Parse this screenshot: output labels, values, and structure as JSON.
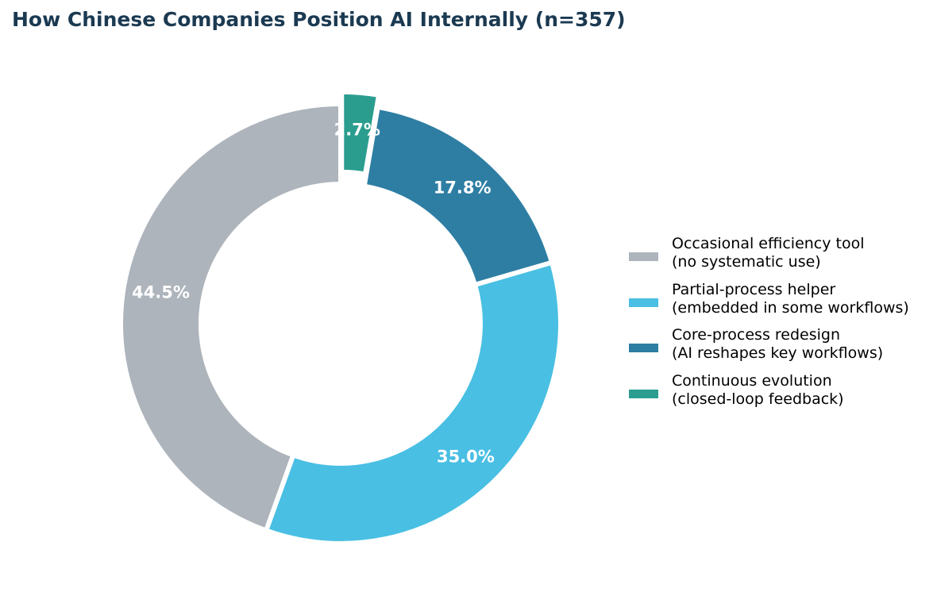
{
  "chart_data": {
    "type": "pie",
    "donut": true,
    "title": "How Chinese Companies Position AI Internally (n=357)",
    "slices": [
      {
        "label": "Occasional efficiency tool\n(no systematic use)",
        "value": 44.5,
        "label_text": "44.5%",
        "color": "#adb4bb"
      },
      {
        "label": "Partial-process helper\n(embedded in some workflows)",
        "value": 35.0,
        "label_text": "35.0%",
        "color": "#49bfe3"
      },
      {
        "label": "Core-process redesign\n(AI reshapes key workflows)",
        "value": 17.8,
        "label_text": "17.8%",
        "color": "#2e7ea3"
      },
      {
        "label": "Continuous evolution\n(closed-loop feedback)",
        "value": 2.7,
        "label_text": "2.7%",
        "color": "#2a9d8f"
      }
    ],
    "start_angle_deg": 90,
    "direction": "counterclockwise",
    "legend_position": "right"
  }
}
